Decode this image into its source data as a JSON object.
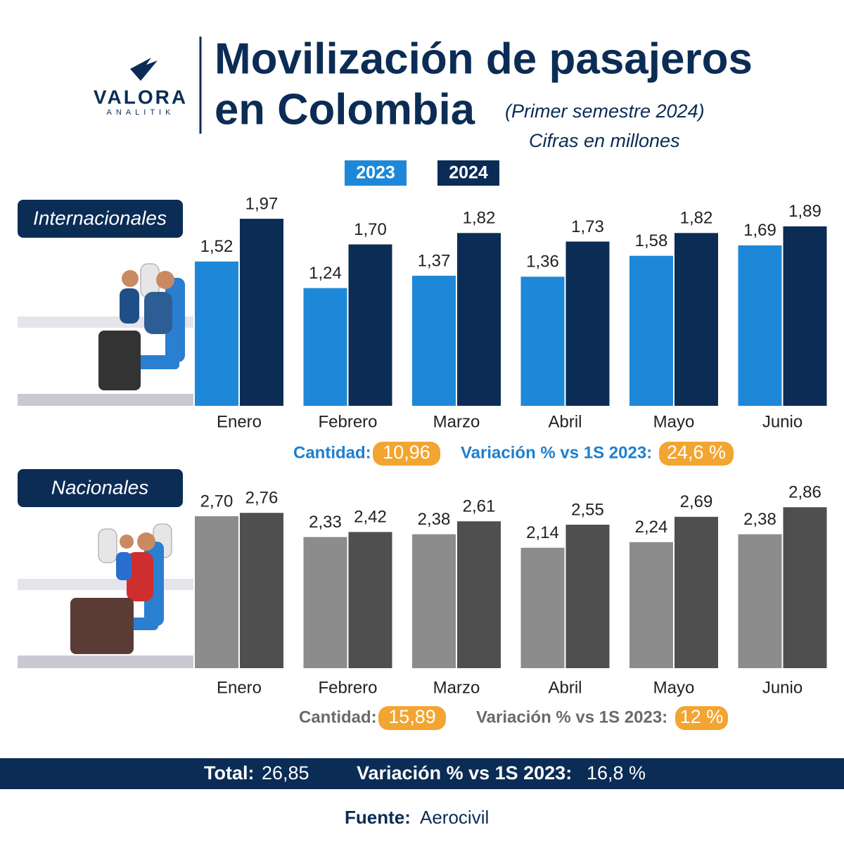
{
  "header": {
    "logo": "VALORA",
    "logo_sub": "ANALITIK",
    "title_lines": [
      "Movilización de pasajeros",
      "en Colombia"
    ],
    "subtitle": "(Primer semestre 2024)",
    "note": "Cifras en millones"
  },
  "chart_data": [
    {
      "type": "bar",
      "title": "Internacionales",
      "categories": [
        "Enero",
        "Febrero",
        "Marzo",
        "Abril",
        "Mayo",
        "Junio"
      ],
      "series": [
        {
          "name": "2023",
          "color": "#1e88d8",
          "values": [
            1.52,
            1.24,
            1.37,
            1.36,
            1.58,
            1.69
          ],
          "value_labels": [
            "1,52",
            "1,24",
            "1,37",
            "1,36",
            "1,58",
            "1,69"
          ]
        },
        {
          "name": "2024",
          "color": "#0b2c55",
          "values": [
            1.97,
            1.7,
            1.82,
            1.73,
            1.82,
            1.89
          ],
          "value_labels": [
            "1,97",
            "1,70",
            "1,82",
            "1,73",
            "1,82",
            "1,89"
          ]
        }
      ],
      "summary": {
        "quantity_label": "Cantidad:",
        "quantity": "10,96",
        "variation_label": "Variación % vs 1S 2023:",
        "variation": "24,6 %"
      }
    },
    {
      "type": "bar",
      "title": "Nacionales",
      "categories": [
        "Enero",
        "Febrero",
        "Marzo",
        "Abril",
        "Mayo",
        "Junio"
      ],
      "series": [
        {
          "color": "#8c8c8c",
          "values": [
            2.7,
            2.33,
            2.38,
            2.14,
            2.24,
            2.38
          ],
          "value_labels": [
            "2,70",
            "2,33",
            "2,38",
            "2,14",
            "2,24",
            "2,38"
          ]
        },
        {
          "color": "#4f4f4f",
          "values": [
            2.76,
            2.42,
            2.61,
            2.55,
            2.69,
            2.86
          ],
          "value_labels": [
            "2,76",
            "2,42",
            "2,61",
            "2,55",
            "2,69",
            "2,86"
          ]
        }
      ],
      "summary": {
        "quantity_label": "Cantidad:",
        "quantity": "15,89",
        "variation_label": "Variación % vs 1S 2023:",
        "variation": "12 %"
      }
    }
  ],
  "footer": {
    "total_label": "Total:",
    "total": "26,85",
    "variation_label": "Variación % vs 1S 2023:",
    "variation": "16,8 %",
    "source_label": "Fuente:",
    "source": "Aerocivil"
  }
}
